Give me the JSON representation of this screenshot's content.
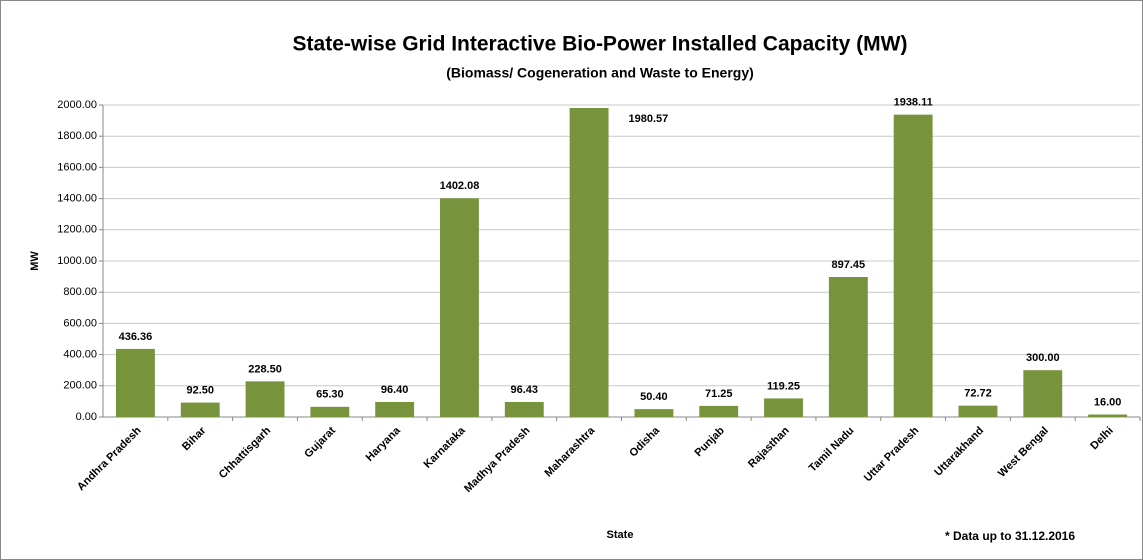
{
  "chart_data": {
    "type": "bar",
    "title": "State-wise Grid Interactive Bio-Power Installed Capacity (MW)",
    "subtitle": "(Biomass/ Cogeneration and Waste to Energy)",
    "x_label": "State",
    "y_label": "MW",
    "note": "* Data up to 31.12.2016",
    "categories": [
      "Andhra Pradesh",
      "Bihar",
      "Chhattisgarh",
      "Gujarat",
      "Haryana",
      "Karnataka",
      "Madhya Pradesh",
      "Maharashtra",
      "Odisha",
      "Punjab",
      "Rajasthan",
      "Tamil Nadu",
      "Uttar Pradesh",
      "Uttarakhand",
      "West Bengal",
      "Delhi"
    ],
    "values": [
      436.36,
      92.5,
      228.5,
      65.3,
      96.4,
      1402.08,
      96.43,
      1980.57,
      50.4,
      71.25,
      119.25,
      897.45,
      1938.11,
      72.72,
      300,
      16
    ],
    "value_labels": [
      "436.36",
      "92.50",
      "228.50",
      "65.30",
      "96.40",
      "1402.08",
      "96.43",
      "1980.57",
      "50.40",
      "71.25",
      "119.25",
      "897.45",
      "1938.11",
      "72.72",
      "300.00",
      "16.00"
    ],
    "color": "#77933c",
    "ylim": [
      0,
      2000
    ],
    "yticks": [
      {
        "value": 0,
        "label": "0.00"
      },
      {
        "value": 200,
        "label": "200.00"
      },
      {
        "value": 400,
        "label": "400.00"
      },
      {
        "value": 600,
        "label": "600.00"
      },
      {
        "value": 800,
        "label": "800.00"
      },
      {
        "value": 1000,
        "label": "1000.00"
      },
      {
        "value": 1200,
        "label": "1200.00"
      },
      {
        "value": 1400,
        "label": "1400.00"
      },
      {
        "value": 1600,
        "label": "1600.00"
      },
      {
        "value": 1800,
        "label": "1800.00"
      },
      {
        "value": 2000,
        "label": "2000.00"
      }
    ],
    "grid": true
  }
}
